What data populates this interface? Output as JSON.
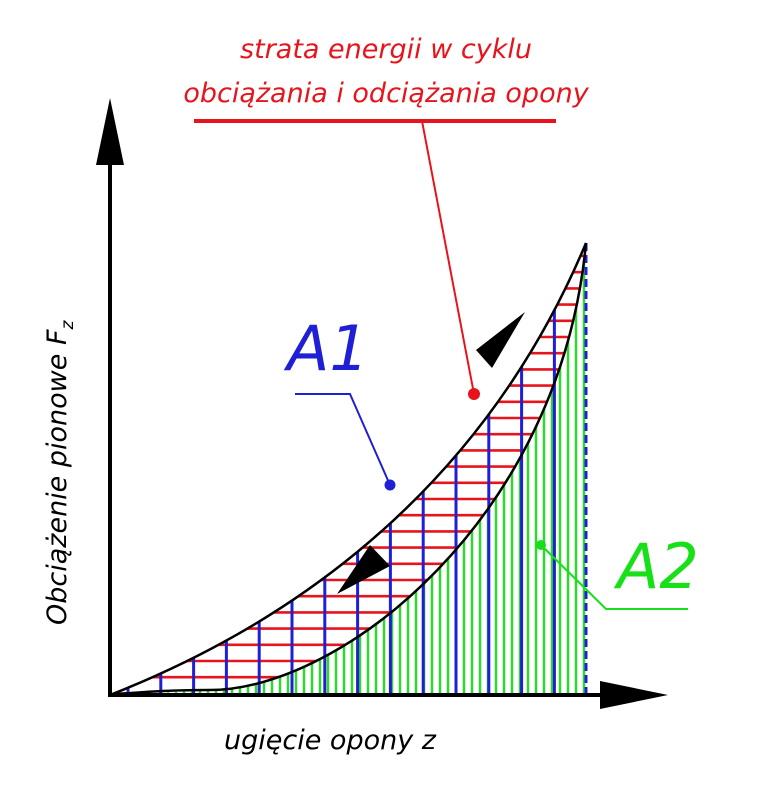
{
  "title_line1": "strata energii w cyklu",
  "title_line2": "obciążania i odciążania opony",
  "ylabel_main": "Obciążenie pionowe F",
  "ylabel_sub": "z",
  "xlabel": "ugięcie opony z",
  "label_a1": "A1",
  "label_a2": "A2",
  "colors": {
    "title": "#e8141c",
    "a1": "#1f1fd6",
    "a2": "#18e018",
    "hatch_red": "#e8141c",
    "hatch_blue": "#1f1fd6",
    "hatch_green": "#2fd82f",
    "curves": "#000000"
  }
}
